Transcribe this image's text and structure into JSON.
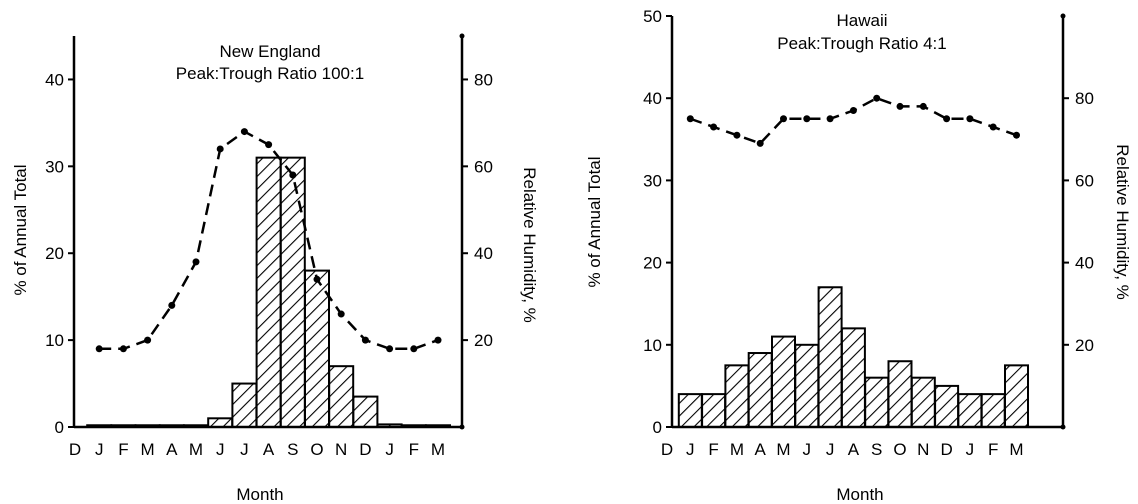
{
  "chart_data": [
    {
      "type": "bar",
      "title": "New England",
      "subtitle": "Peak:Trough Ratio 100:1",
      "xlabel": "Month",
      "ylabel": "% of Annual Total",
      "y2label": "Relative Humidity, %",
      "ylim": [
        0,
        45
      ],
      "y2lim": [
        0,
        90
      ],
      "yticks": [
        "0",
        "10",
        "20",
        "30",
        "40"
      ],
      "y2ticks": [
        "20",
        "40",
        "60",
        "80"
      ],
      "categories": [
        "D",
        "J",
        "F",
        "M",
        "A",
        "M",
        "J",
        "J",
        "A",
        "S",
        "O",
        "N",
        "D",
        "J",
        "F",
        "M"
      ],
      "series": [
        {
          "values": [
            null,
            0.2,
            0.2,
            0.2,
            0.2,
            0.2,
            1,
            5,
            31,
            31,
            18,
            7,
            3.5,
            0.3,
            0.2,
            0.2
          ]
        },
        {
          "axis": "right",
          "style": "dashed-line",
          "values": [
            null,
            18,
            18,
            20,
            28,
            38,
            64,
            68,
            65,
            58,
            34,
            26,
            20,
            18,
            18,
            20
          ]
        }
      ]
    },
    {
      "type": "bar",
      "title": "Hawaii",
      "subtitle": "Peak:Trough Ratio 4:1",
      "xlabel": "Month",
      "ylabel": "% of Annual Total",
      "y2label": "Relative Humidity, %",
      "ylim": [
        0,
        50
      ],
      "y2lim": [
        0,
        100
      ],
      "yticks": [
        "0",
        "10",
        "20",
        "30",
        "40",
        "50"
      ],
      "y2ticks": [
        "20",
        "40",
        "60",
        "80"
      ],
      "categories": [
        "D",
        "J",
        "F",
        "M",
        "A",
        "M",
        "J",
        "J",
        "A",
        "S",
        "O",
        "N",
        "D",
        "J",
        "F",
        "M"
      ],
      "series": [
        {
          "values": [
            null,
            4,
            4,
            7.5,
            9,
            11,
            10,
            17,
            12,
            6,
            8,
            6,
            5,
            4,
            4,
            7.5
          ]
        },
        {
          "axis": "right",
          "style": "dashed-line",
          "values": [
            null,
            75,
            73,
            71,
            69,
            75,
            75,
            75,
            77,
            80,
            78,
            78,
            75,
            75,
            73,
            71
          ]
        }
      ]
    }
  ]
}
